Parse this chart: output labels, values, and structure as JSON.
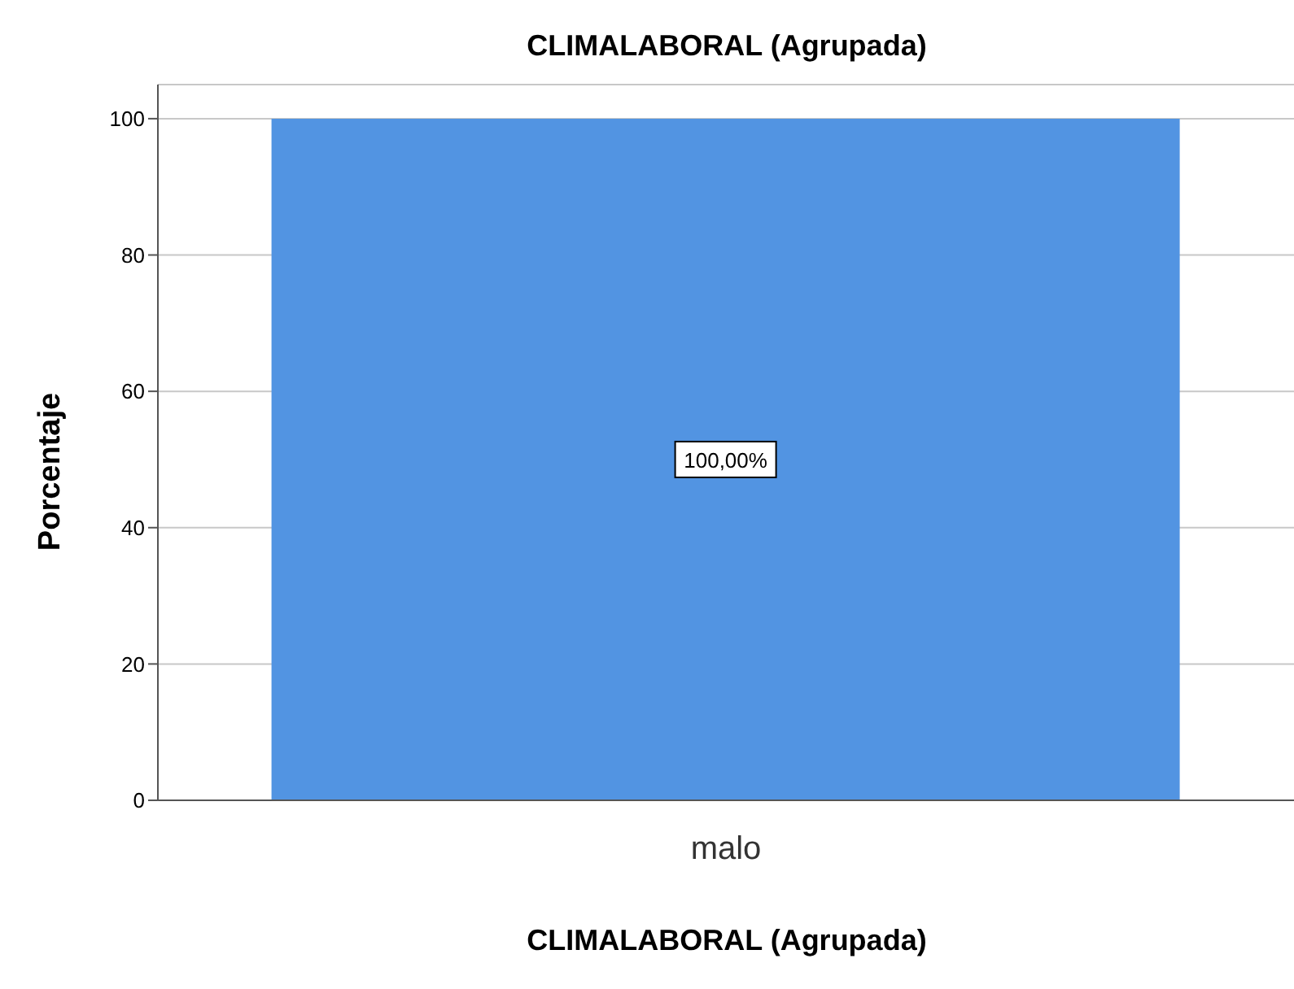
{
  "chart_data": {
    "type": "bar",
    "title": "CLIMALABORAL (Agrupada)",
    "xlabel": "CLIMALABORAL (Agrupada)",
    "ylabel": "Porcentaje",
    "categories": [
      "malo"
    ],
    "values": [
      100
    ],
    "color": "#5294e2",
    "value_labels": [
      "100,00%"
    ],
    "ylim": [
      0,
      105
    ],
    "yticks": [
      0,
      20,
      40,
      60,
      80,
      100
    ],
    "grid": "y"
  }
}
